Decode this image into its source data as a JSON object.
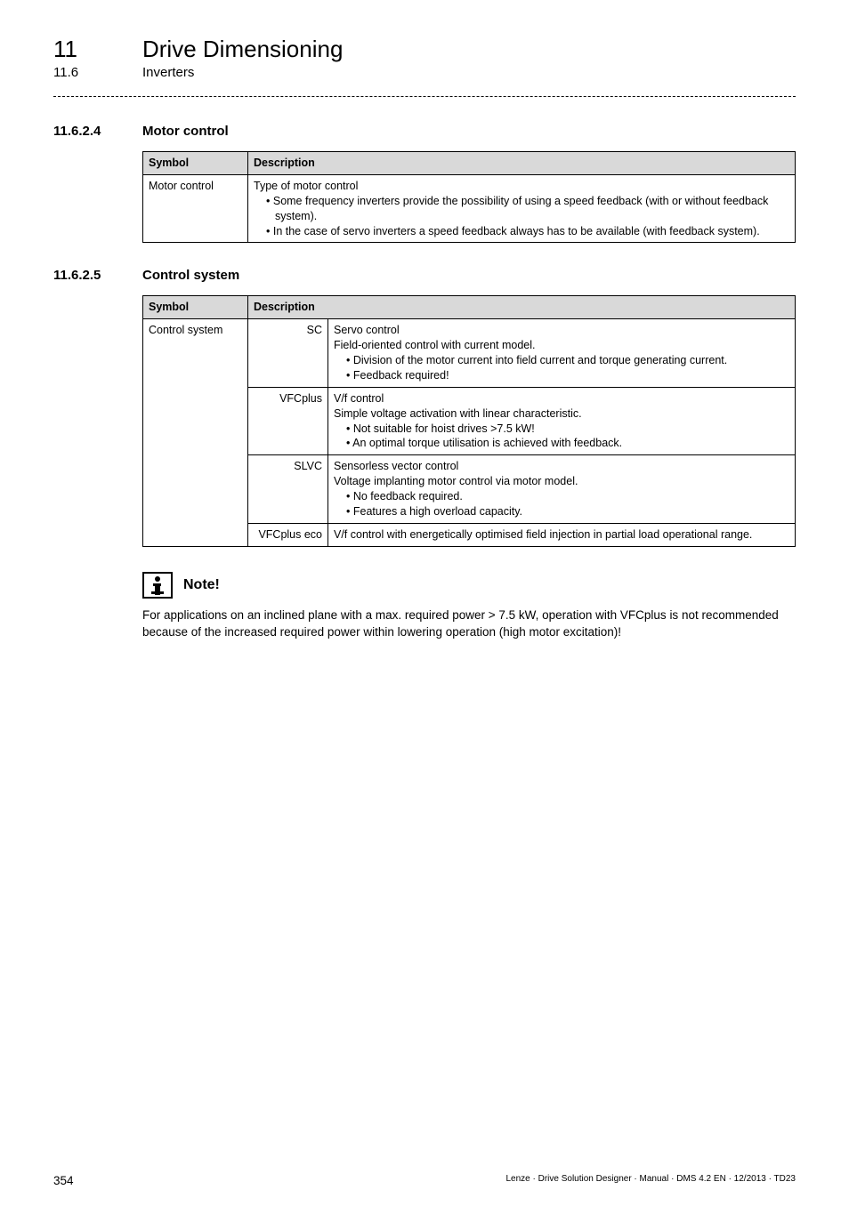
{
  "header": {
    "chapter_num": "11",
    "chapter_title": "Drive Dimensioning",
    "sub_num": "11.6",
    "sub_title": "Inverters"
  },
  "section1": {
    "num": "11.6.2.4",
    "title": "Motor control",
    "table": {
      "headers": [
        "Symbol",
        "Description"
      ],
      "row": {
        "symbol": "Motor control",
        "desc_lead": "Type of motor control",
        "bullets": [
          "Some frequency inverters provide the possibility of using a speed feedback (with or without feedback system).",
          "In the case of servo inverters a speed feedback always has to be available (with feedback system)."
        ]
      }
    }
  },
  "section2": {
    "num": "11.6.2.5",
    "title": "Control system",
    "table": {
      "headers": [
        "Symbol",
        "Description"
      ],
      "symbol": "Control system",
      "rows": [
        {
          "key": "SC",
          "lead": "Servo control",
          "sub": "Field-oriented control with current model.",
          "bullets": [
            "Division of the motor current into field current and torque generating current.",
            "Feedback required!"
          ]
        },
        {
          "key": "VFCplus",
          "lead": "V/f control",
          "sub": "Simple voltage activation with linear characteristic.",
          "bullets": [
            "Not suitable for hoist drives >7.5 kW!",
            "An optimal torque utilisation is achieved with feedback."
          ]
        },
        {
          "key": "SLVC",
          "lead": "Sensorless vector control",
          "sub": "Voltage implanting motor control via motor model.",
          "bullets": [
            "No feedback required.",
            "Features a high overload capacity."
          ]
        },
        {
          "key": "VFCplus eco",
          "lead": "V/f control with energetically optimised field injection in partial load operational range.",
          "sub": "",
          "bullets": []
        }
      ]
    }
  },
  "note": {
    "label": "Note!",
    "text": "For applications on an inclined plane with a max. required power > 7.5 kW, operation with VFCplus is not recommended because of the increased required power within lowering operation (high motor excitation)!"
  },
  "footer": {
    "page": "354",
    "doc": "Lenze · Drive Solution Designer · Manual · DMS 4.2 EN · 12/2013 · TD23"
  }
}
